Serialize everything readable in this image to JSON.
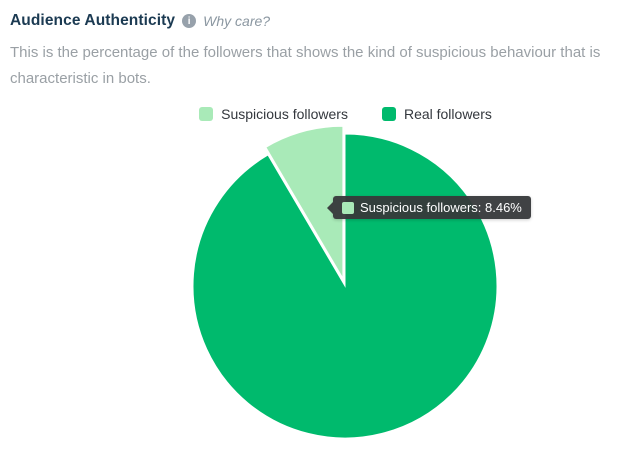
{
  "header": {
    "title": "Audience Authenticity",
    "info_glyph": "i",
    "why_care": "Why care?"
  },
  "description": "This is the percentage of the followers that shows the kind of suspicious behaviour that is characteristic in bots.",
  "chart_data": {
    "type": "pie",
    "title": "Audience Authenticity",
    "unit": "%",
    "legend_position": "top",
    "start_angle_deg": -30.46,
    "slices": [
      {
        "label": "Suspicious followers",
        "value": 8.46,
        "color": "#a9eab8",
        "offset": 8
      },
      {
        "label": "Real followers",
        "value": 91.54,
        "color": "#00ba6d",
        "offset": 0
      }
    ]
  },
  "tooltip": {
    "text": "Suspicious followers: 8.46%",
    "label": "Suspicious followers",
    "value": "8.46%",
    "swatch_color": "#a9eab8"
  },
  "colors": {
    "suspicious_green": "#a9eab8",
    "real_green": "#00ba6d",
    "title_navy": "#1b3a52",
    "body_gray": "#9aa0a5"
  }
}
